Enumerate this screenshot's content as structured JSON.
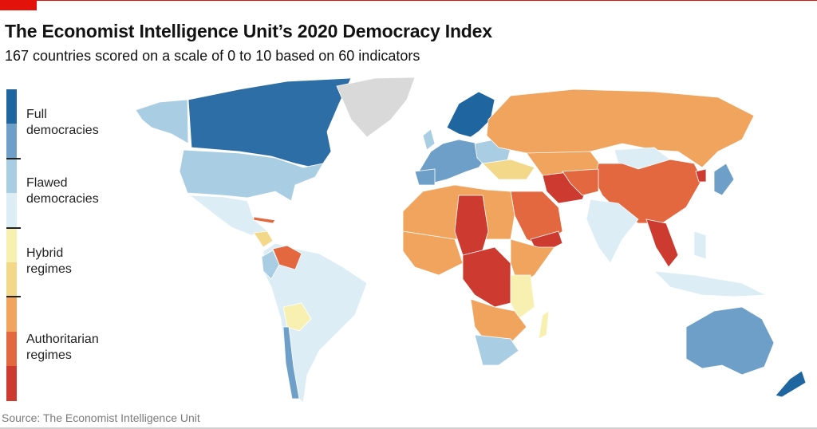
{
  "header": {
    "title": "The Economist Intelligence Unit’s 2020 Democracy Index",
    "subtitle": "167 countries scored on a scale of 0 to 10 based on 60 indicators"
  },
  "legend": {
    "categories": [
      {
        "label": "Full democracies",
        "colors": [
          "#1f65a0",
          "#6e9fc9"
        ]
      },
      {
        "label": "Flawed democracies",
        "colors": [
          "#a9cde3",
          "#dcedf5"
        ]
      },
      {
        "label": "Hybrid regimes",
        "colors": [
          "#f7f0b0",
          "#f3d88a"
        ]
      },
      {
        "label": "Authoritarian regimes",
        "colors": [
          "#f0a45e",
          "#e3673f",
          "#cc3a30"
        ]
      }
    ]
  },
  "map": {
    "no_data_color": "#d9d9d9"
  },
  "source": "Source: The Economist Intelligence Unit",
  "brand_color": "#e3120b"
}
